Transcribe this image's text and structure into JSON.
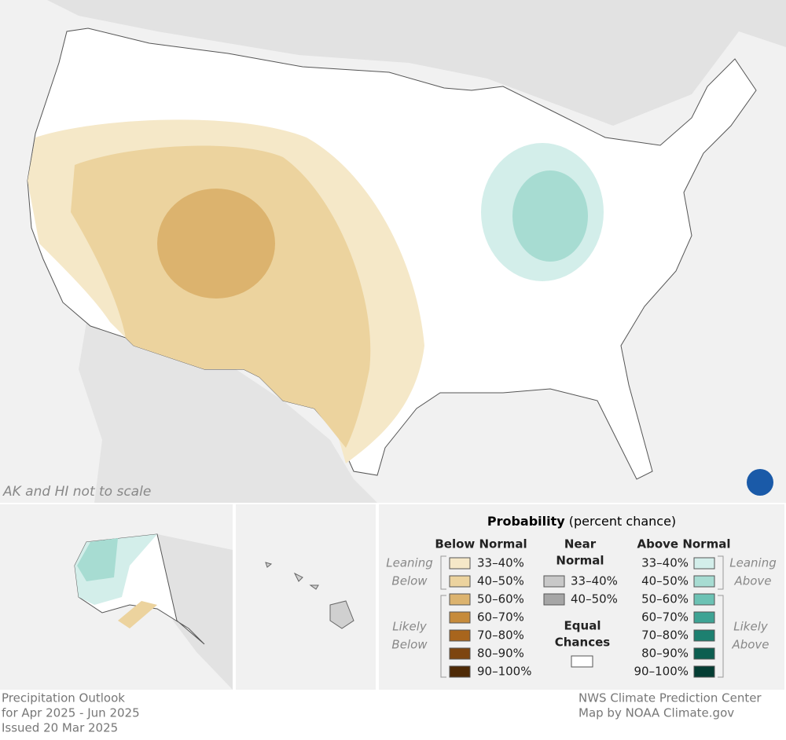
{
  "map": {
    "note": "AK and HI not to scale"
  },
  "legend": {
    "title": "Probability",
    "subtitle": "(percent chance)",
    "below_normal": {
      "heading": "Below Normal",
      "leaning_label": [
        "Leaning",
        "Below"
      ],
      "likely_label": [
        "Likely",
        "Below"
      ],
      "items": [
        {
          "label": "33–40%",
          "color": "#f5e8c8"
        },
        {
          "label": "40–50%",
          "color": "#ecd39e"
        },
        {
          "label": "50–60%",
          "color": "#dcb36e"
        },
        {
          "label": "60–70%",
          "color": "#c68b3b"
        },
        {
          "label": "70–80%",
          "color": "#a8651d"
        },
        {
          "label": "80–90%",
          "color": "#7d4510"
        },
        {
          "label": "90–100%",
          "color": "#4e2a06"
        }
      ]
    },
    "near_normal": {
      "heading": [
        "Near",
        "Normal"
      ],
      "items": [
        {
          "label": "33–40%",
          "color": "#c8c8c8"
        },
        {
          "label": "40–50%",
          "color": "#a6a6a6"
        }
      ]
    },
    "equal_chances": {
      "heading": [
        "Equal",
        "Chances"
      ],
      "color": "#ffffff"
    },
    "above_normal": {
      "heading": "Above Normal",
      "leaning_label": [
        "Leaning",
        "Above"
      ],
      "likely_label": [
        "Likely",
        "Above"
      ],
      "items": [
        {
          "label": "33–40%",
          "color": "#d3eeea"
        },
        {
          "label": "40–50%",
          "color": "#a7dcd2"
        },
        {
          "label": "50–60%",
          "color": "#6cc2b4"
        },
        {
          "label": "60–70%",
          "color": "#3ea394"
        },
        {
          "label": "70–80%",
          "color": "#1d8070"
        },
        {
          "label": "80–90%",
          "color": "#0c5e50"
        },
        {
          "label": "90–100%",
          "color": "#043d33"
        }
      ]
    }
  },
  "footer": {
    "left": [
      "Precipitation Outlook",
      "for Apr 2025 - Jun 2025",
      "Issued 20 Mar 2025"
    ],
    "right": [
      "NWS Climate Prediction Center",
      "Map by NOAA Climate.gov"
    ]
  }
}
